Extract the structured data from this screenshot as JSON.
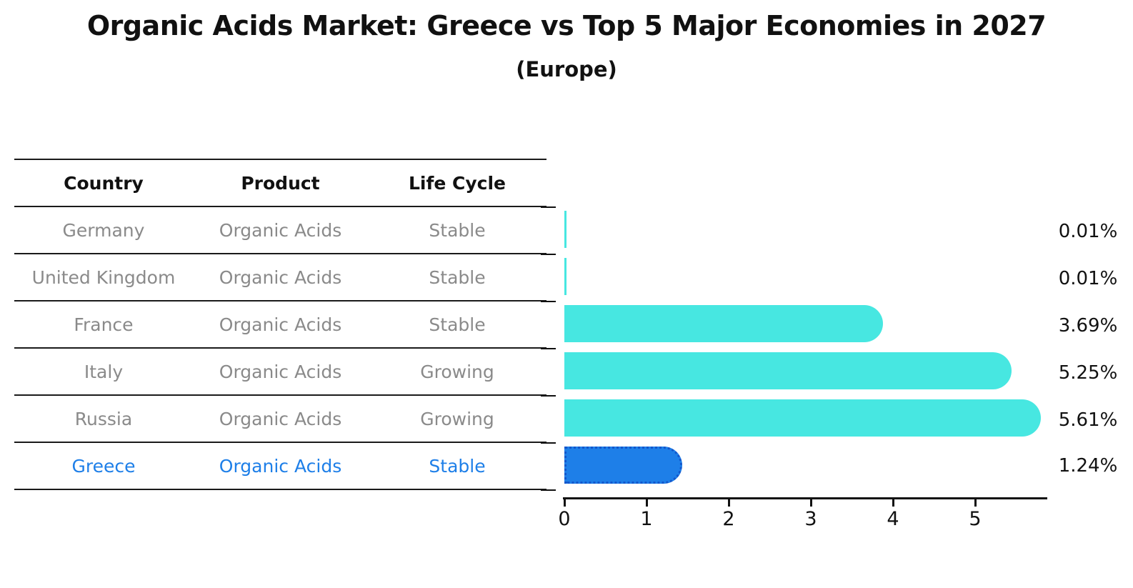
{
  "title": "Organic Acids Market: Greece vs Top 5 Major Economies in 2027",
  "subtitle": "(Europe)",
  "table": {
    "headers": [
      "Country",
      "Product",
      "Life Cycle"
    ],
    "rows": [
      {
        "country": "Germany",
        "product": "Organic Acids",
        "life_cycle": "Stable"
      },
      {
        "country": "United Kingdom",
        "product": "Organic Acids",
        "life_cycle": "Stable"
      },
      {
        "country": "France",
        "product": "Organic Acids",
        "life_cycle": "Stable"
      },
      {
        "country": "Italy",
        "product": "Organic Acids",
        "life_cycle": "Growing"
      },
      {
        "country": "Russia",
        "product": "Organic Acids",
        "life_cycle": "Growing"
      },
      {
        "country": "Greece",
        "product": "Organic Acids",
        "life_cycle": "Stable"
      }
    ]
  },
  "chart_data": {
    "type": "bar",
    "orientation": "horizontal",
    "title": "Organic Acids Market: Greece vs Top 5 Major Economies in 2027",
    "subtitle": "(Europe)",
    "categories": [
      "Germany",
      "United Kingdom",
      "France",
      "Italy",
      "Russia",
      "Greece"
    ],
    "values": [
      0.01,
      0.01,
      3.69,
      5.25,
      5.61,
      1.24
    ],
    "value_labels": [
      "0.01%",
      "0.01%",
      "3.69%",
      "5.25%",
      "5.61%",
      "1.24%"
    ],
    "value_unit": "%",
    "highlighted_category": "Greece",
    "xticks": [
      "0",
      "1",
      "2",
      "3",
      "4",
      "5"
    ],
    "xlim": [
      0,
      5.9
    ],
    "grid": false,
    "legend": false,
    "bar_color": "#47e7e1",
    "highlight_color": "#1e7fe8",
    "highlight_border_color": "#1357cc",
    "muted_text_color": "#8a8a8a",
    "axis_color": "#111111"
  }
}
